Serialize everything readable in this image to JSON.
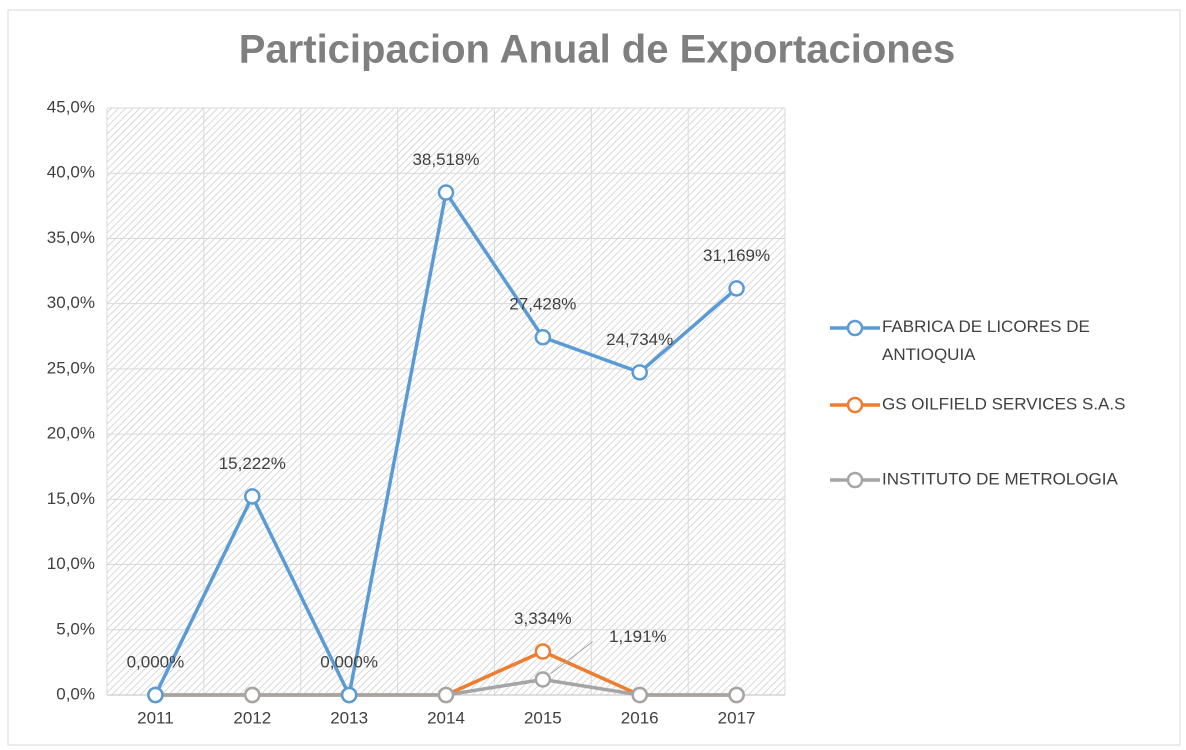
{
  "chart_data": {
    "type": "line",
    "title": "Participacion Anual de Exportaciones",
    "categories": [
      "2011",
      "2012",
      "2013",
      "2014",
      "2015",
      "2016",
      "2017"
    ],
    "series": [
      {
        "name": "FABRICA DE LICORES DE ANTIOQUIA",
        "color": "#5b9bd5",
        "values": [
          0,
          15.222,
          0,
          38.518,
          27.428,
          24.734,
          31.169
        ],
        "value_labels": [
          "0,000%",
          "15,222%",
          "0,000%",
          "38,518%",
          "27,428%",
          "24,734%",
          "31,169%"
        ]
      },
      {
        "name": "GS OILFIELD SERVICES S.A.S",
        "color": "#ed7d31",
        "values": [
          0,
          0,
          0,
          0,
          3.334,
          0,
          0
        ],
        "value_labels": [
          null,
          null,
          null,
          null,
          "3,334%",
          null,
          null
        ]
      },
      {
        "name": "INSTITUTO DE METROLOGIA",
        "color": "#a5a5a5",
        "values": [
          0,
          0,
          0,
          0,
          1.191,
          0,
          0
        ],
        "value_labels": [
          null,
          null,
          null,
          null,
          "1,191%",
          null,
          null
        ]
      }
    ],
    "ylim": [
      0,
      45
    ],
    "yticks": [
      {
        "value": 0,
        "label": "0,0%"
      },
      {
        "value": 5,
        "label": "5,0%"
      },
      {
        "value": 10,
        "label": "10,0%"
      },
      {
        "value": 15,
        "label": "15,0%"
      },
      {
        "value": 20,
        "label": "20,0%"
      },
      {
        "value": 25,
        "label": "25,0%"
      },
      {
        "value": 30,
        "label": "30,0%"
      },
      {
        "value": 35,
        "label": "35,0%"
      },
      {
        "value": 40,
        "label": "40,0%"
      },
      {
        "value": 45,
        "label": "45,0%"
      }
    ],
    "grid": true,
    "legend": "right"
  }
}
